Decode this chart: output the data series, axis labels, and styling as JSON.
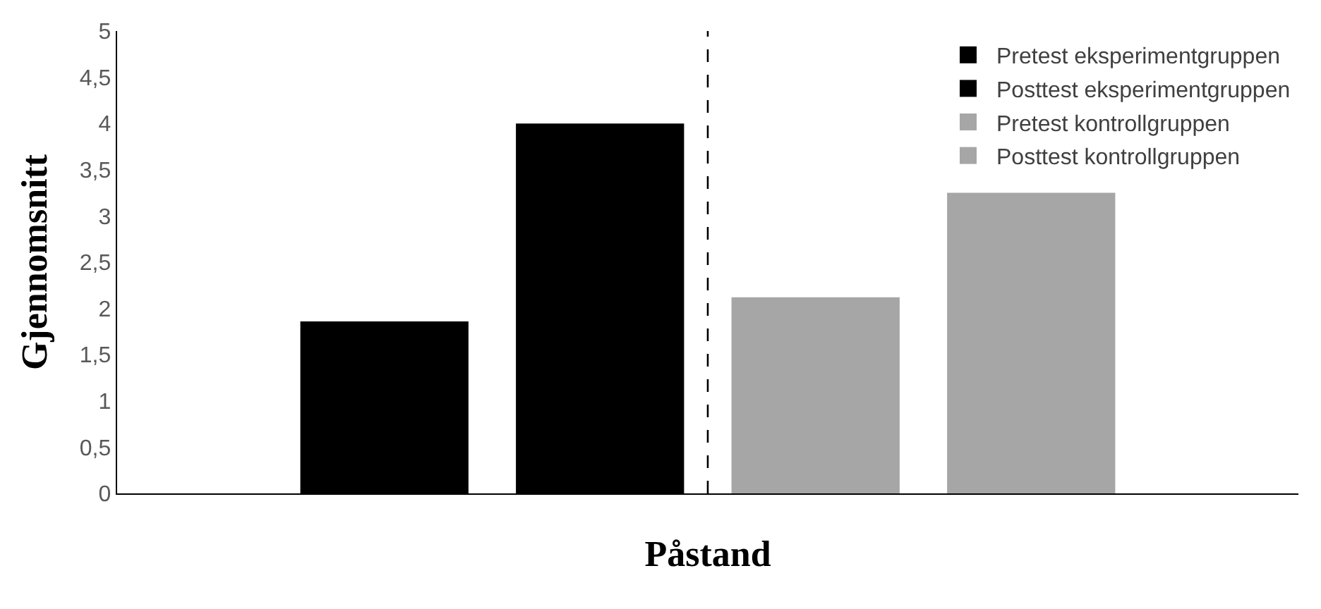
{
  "chart_data": {
    "type": "bar",
    "xlabel": "Påstand",
    "ylabel": "Gjennomsnitt",
    "categories": [
      null
    ],
    "series": [
      {
        "name": "Pretest eksperimentgruppen",
        "color": "#000000",
        "values": [
          1.86
        ]
      },
      {
        "name": "Posttest eksperimentgruppen",
        "color": "#000000",
        "values": [
          4.0
        ]
      },
      {
        "name": "Pretest kontrollgruppen",
        "color": "#a6a6a6",
        "values": [
          2.12
        ]
      },
      {
        "name": "Posttest kontrollgruppen",
        "color": "#a6a6a6",
        "values": [
          3.25
        ]
      }
    ],
    "ylim": [
      0,
      5
    ],
    "yticks": [
      0,
      {
        "value": 0.5,
        "label": "0,5"
      },
      1,
      {
        "value": 1.5,
        "label": "1,5"
      },
      2,
      {
        "value": 2.5,
        "label": "2,5"
      },
      3,
      {
        "value": 3.5,
        "label": "3,5"
      },
      4,
      {
        "value": 4.5,
        "label": "4,5"
      },
      5
    ],
    "legend": "top right"
  }
}
